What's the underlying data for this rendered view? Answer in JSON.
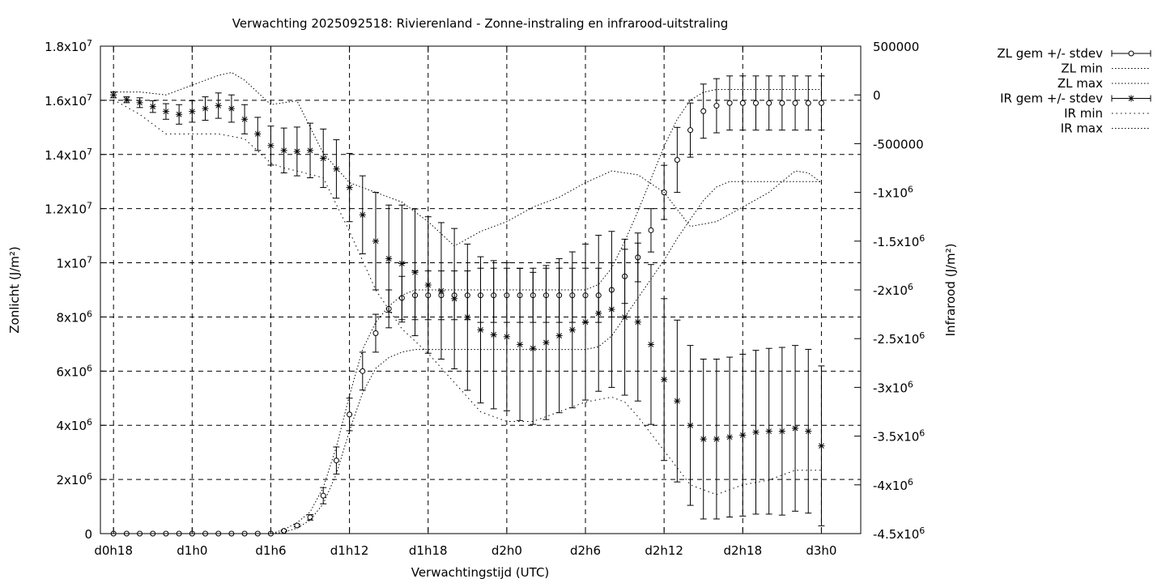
{
  "chart_data": {
    "type": "line",
    "title": "Verwachting 2025092518: Rivierenland - Zonne-instraling en infrarood-uitstraling",
    "xlabel": "Verwachtingstijd (UTC)",
    "ylabel_left": "Zonlicht (J/m²)",
    "ylabel_right": "Infrarood (J/m²)",
    "grid": true,
    "legend_position": "outside-top-right",
    "x_unit": "hours since d0h18",
    "xlim": [
      -1,
      57
    ],
    "ylim_left": [
      0,
      18000000
    ],
    "ylim_right": [
      -4500000,
      500000
    ],
    "x_ticks": [
      {
        "x": 0,
        "label": "d0h18"
      },
      {
        "x": 6,
        "label": "d1h0"
      },
      {
        "x": 12,
        "label": "d1h6"
      },
      {
        "x": 18,
        "label": "d1h12"
      },
      {
        "x": 24,
        "label": "d1h18"
      },
      {
        "x": 30,
        "label": "d2h0"
      },
      {
        "x": 36,
        "label": "d2h6"
      },
      {
        "x": 42,
        "label": "d2h12"
      },
      {
        "x": 48,
        "label": "d2h18"
      },
      {
        "x": 54,
        "label": "d3h0"
      }
    ],
    "y_ticks_left": [
      {
        "v": 0,
        "m": "0",
        "e": ""
      },
      {
        "v": 2000000,
        "m": "2x10",
        "e": "6"
      },
      {
        "v": 4000000,
        "m": "4x10",
        "e": "6"
      },
      {
        "v": 6000000,
        "m": "6x10",
        "e": "6"
      },
      {
        "v": 8000000,
        "m": "8x10",
        "e": "6"
      },
      {
        "v": 10000000,
        "m": "1x10",
        "e": "7"
      },
      {
        "v": 12000000,
        "m": "1.2x10",
        "e": "7"
      },
      {
        "v": 14000000,
        "m": "1.4x10",
        "e": "7"
      },
      {
        "v": 16000000,
        "m": "1.6x10",
        "e": "7"
      },
      {
        "v": 18000000,
        "m": "1.8x10",
        "e": "7"
      }
    ],
    "y_ticks_right": [
      {
        "v": 500000,
        "m": "500000",
        "e": ""
      },
      {
        "v": 0,
        "m": "0",
        "e": ""
      },
      {
        "v": -500000,
        "m": "-500000",
        "e": ""
      },
      {
        "v": -1000000,
        "m": "-1x10",
        "e": "6"
      },
      {
        "v": -1500000,
        "m": "-1.5x10",
        "e": "6"
      },
      {
        "v": -2000000,
        "m": "-2x10",
        "e": "6"
      },
      {
        "v": -2500000,
        "m": "-2.5x10",
        "e": "6"
      },
      {
        "v": -3000000,
        "m": "-3x10",
        "e": "6"
      },
      {
        "v": -3500000,
        "m": "-3.5x10",
        "e": "6"
      },
      {
        "v": -4000000,
        "m": "-4x10",
        "e": "6"
      },
      {
        "v": -4500000,
        "m": "-4.5x10",
        "e": "6"
      }
    ],
    "legend": [
      {
        "label": "ZL gem +/- stdev",
        "style": "errorbar",
        "marker": "circle"
      },
      {
        "label": "ZL min",
        "style": "dotted"
      },
      {
        "label": "ZL max",
        "style": "dotted"
      },
      {
        "label": "IR gem +/- stdev",
        "style": "errorbar",
        "marker": "star"
      },
      {
        "label": "IR min",
        "style": "dotted-sparse"
      },
      {
        "label": "IR max",
        "style": "dotted"
      }
    ],
    "series": [
      {
        "name": "ZL gem +/- stdev",
        "axis": "left",
        "marker": "circle",
        "x": [
          0,
          1,
          2,
          3,
          4,
          5,
          6,
          7,
          8,
          9,
          10,
          11,
          12,
          13,
          14,
          15,
          16,
          17,
          18,
          19,
          20,
          21,
          22,
          23,
          24,
          25,
          26,
          27,
          28,
          29,
          30,
          31,
          32,
          33,
          34,
          35,
          36,
          37,
          38,
          39,
          40,
          41,
          42,
          43,
          44,
          45,
          46,
          47,
          48,
          49,
          50,
          51,
          52,
          53,
          54
        ],
        "y": [
          0,
          0,
          0,
          0,
          0,
          0,
          0,
          0,
          0,
          0,
          0,
          0,
          0,
          100000,
          300000,
          600000,
          1400000,
          2700000,
          4400000,
          6000000,
          7400000,
          8300000,
          8700000,
          8800000,
          8800000,
          8800000,
          8800000,
          8800000,
          8800000,
          8800000,
          8800000,
          8800000,
          8800000,
          8800000,
          8800000,
          8800000,
          8800000,
          8800000,
          9000000,
          9500000,
          10200000,
          11200000,
          12600000,
          13800000,
          14900000,
          15600000,
          15800000,
          15900000,
          15900000,
          15900000,
          15900000,
          15900000,
          15900000,
          15900000,
          15900000
        ],
        "err": [
          0,
          0,
          0,
          0,
          0,
          0,
          0,
          0,
          0,
          0,
          0,
          0,
          0,
          20000,
          50000,
          100000,
          300000,
          500000,
          600000,
          700000,
          700000,
          700000,
          800000,
          900000,
          900000,
          900000,
          900000,
          900000,
          1000000,
          1000000,
          1000000,
          1000000,
          1000000,
          1000000,
          1000000,
          1000000,
          1000000,
          1000000,
          1000000,
          1000000,
          900000,
          800000,
          1000000,
          1200000,
          1000000,
          1000000,
          1000000,
          1000000,
          1000000,
          1000000,
          1000000,
          1000000,
          1000000,
          1000000,
          1000000
        ]
      },
      {
        "name": "ZL min",
        "axis": "left",
        "x": [
          0,
          6,
          12,
          13,
          14,
          15,
          16,
          17,
          18,
          19,
          20,
          21,
          22,
          23,
          24,
          25,
          26,
          27,
          28,
          29,
          30,
          31,
          32,
          33,
          34,
          35,
          36,
          37,
          38,
          39,
          40,
          41,
          42,
          43,
          44,
          45,
          46,
          47,
          48,
          49,
          50,
          51,
          52,
          53,
          54
        ],
        "y": [
          0,
          0,
          0,
          50000,
          200000,
          500000,
          1100000,
          2200000,
          3800000,
          5200000,
          6100000,
          6500000,
          6700000,
          6800000,
          6800000,
          6800000,
          6800000,
          6800000,
          6800000,
          6800000,
          6800000,
          6800000,
          6800000,
          6800000,
          6800000,
          6800000,
          6800000,
          6900000,
          7300000,
          8000000,
          8700000,
          9400000,
          10100000,
          10900000,
          11600000,
          12300000,
          12800000,
          13000000,
          13000000,
          13000000,
          13000000,
          13000000,
          13000000,
          13000000,
          13000000
        ]
      },
      {
        "name": "ZL max",
        "axis": "left",
        "x": [
          0,
          6,
          12,
          13,
          14,
          15,
          16,
          17,
          18,
          19,
          20,
          21,
          22,
          23,
          24,
          25,
          26,
          27,
          28,
          29,
          30,
          31,
          32,
          33,
          34,
          35,
          36,
          37,
          38,
          39,
          40,
          41,
          42,
          43,
          44,
          45,
          46,
          47,
          48,
          49,
          50,
          51,
          52,
          53,
          54
        ],
        "y": [
          0,
          0,
          0,
          150000,
          400000,
          800000,
          1700000,
          3200000,
          5100000,
          6800000,
          7800000,
          8400000,
          8800000,
          9000000,
          9000000,
          9000000,
          9000000,
          9000000,
          9000000,
          9000000,
          9000000,
          9000000,
          9000000,
          9000000,
          9000000,
          9000000,
          9000000,
          9200000,
          9800000,
          10800000,
          11900000,
          13100000,
          14300000,
          15300000,
          16000000,
          16300000,
          16400000,
          16400000,
          16400000,
          16400000,
          16400000,
          16400000,
          16400000,
          16400000,
          16400000
        ]
      },
      {
        "name": "IR gem +/- stdev",
        "axis": "right",
        "marker": "star",
        "x": [
          0,
          1,
          2,
          3,
          4,
          5,
          6,
          7,
          8,
          9,
          10,
          11,
          12,
          13,
          14,
          15,
          16,
          17,
          18,
          19,
          20,
          21,
          22,
          23,
          24,
          25,
          26,
          27,
          28,
          29,
          30,
          31,
          32,
          33,
          34,
          35,
          36,
          37,
          38,
          39,
          40,
          41,
          42,
          43,
          44,
          45,
          46,
          47,
          48,
          49,
          50,
          51,
          52,
          53,
          54
        ],
        "y": [
          0,
          -50000,
          -80000,
          -120000,
          -170000,
          -200000,
          -170000,
          -140000,
          -110000,
          -140000,
          -250000,
          -400000,
          -520000,
          -570000,
          -580000,
          -570000,
          -650000,
          -760000,
          -950000,
          -1230000,
          -1500000,
          -1680000,
          -1730000,
          -1820000,
          -1950000,
          -2010000,
          -2090000,
          -2280000,
          -2410000,
          -2460000,
          -2480000,
          -2560000,
          -2600000,
          -2540000,
          -2470000,
          -2410000,
          -2330000,
          -2240000,
          -2200000,
          -2280000,
          -2330000,
          -2560000,
          -2920000,
          -3140000,
          -3390000,
          -3530000,
          -3530000,
          -3510000,
          -3490000,
          -3460000,
          -3450000,
          -3450000,
          -3420000,
          -3450000,
          -3600000
        ],
        "err": [
          30000,
          30000,
          50000,
          60000,
          80000,
          100000,
          110000,
          120000,
          130000,
          140000,
          150000,
          170000,
          200000,
          230000,
          250000,
          280000,
          300000,
          300000,
          350000,
          400000,
          500000,
          550000,
          600000,
          650000,
          700000,
          700000,
          720000,
          750000,
          750000,
          760000,
          760000,
          780000,
          780000,
          790000,
          790000,
          800000,
          800000,
          800000,
          800000,
          800000,
          810000,
          820000,
          830000,
          830000,
          820000,
          820000,
          820000,
          820000,
          830000,
          840000,
          850000,
          860000,
          850000,
          840000,
          820000
        ]
      },
      {
        "name": "IR min",
        "axis": "right",
        "x": [
          0,
          2,
          4,
          6,
          8,
          10,
          12,
          13,
          14,
          16,
          18,
          20,
          22,
          24,
          26,
          28,
          30,
          32,
          34,
          36,
          38,
          39,
          40,
          42,
          44,
          46,
          48,
          50,
          52,
          53,
          54
        ],
        "y": [
          -50000,
          -200000,
          -400000,
          -400000,
          -400000,
          -450000,
          -700000,
          -750000,
          -780000,
          -850000,
          -1400000,
          -2000000,
          -2400000,
          -2650000,
          -2950000,
          -3250000,
          -3350000,
          -3350000,
          -3250000,
          -3150000,
          -3100000,
          -3150000,
          -3300000,
          -3650000,
          -4000000,
          -4100000,
          -4000000,
          -3950000,
          -3850000,
          -3850000,
          -3850000
        ]
      },
      {
        "name": "IR max",
        "axis": "right",
        "x": [
          0,
          2,
          4,
          6,
          8,
          9,
          10,
          12,
          14,
          16,
          18,
          20,
          22,
          24,
          26,
          28,
          30,
          32,
          34,
          36,
          38,
          40,
          42,
          44,
          46,
          48,
          50,
          52,
          53,
          54
        ],
        "y": [
          30000,
          30000,
          0,
          100000,
          200000,
          230000,
          150000,
          -100000,
          -60000,
          -600000,
          -900000,
          -1000000,
          -1100000,
          -1300000,
          -1550000,
          -1400000,
          -1300000,
          -1150000,
          -1050000,
          -900000,
          -780000,
          -820000,
          -1000000,
          -1350000,
          -1300000,
          -1150000,
          -1000000,
          -780000,
          -800000,
          -900000
        ]
      }
    ]
  }
}
